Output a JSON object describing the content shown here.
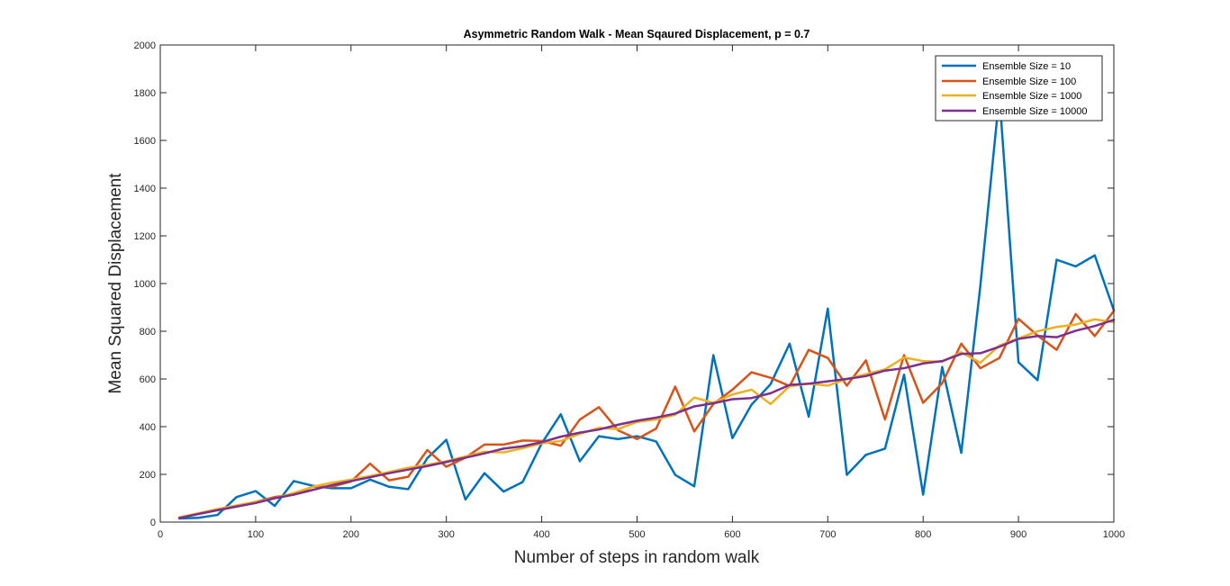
{
  "chart_data": {
    "type": "line",
    "title": "Asymmetric Random Walk - Mean Sqaured Displacement,  p = 0.7",
    "xlabel": "Number of steps in random walk",
    "ylabel": "Mean Squared Displacement",
    "xlim": [
      0,
      1000
    ],
    "ylim": [
      0,
      2000
    ],
    "xticks": [
      0,
      100,
      200,
      300,
      400,
      500,
      600,
      700,
      800,
      900,
      1000
    ],
    "yticks": [
      0,
      200,
      400,
      600,
      800,
      1000,
      1200,
      1400,
      1600,
      1800,
      2000
    ],
    "grid": false,
    "legend_position": "top-right",
    "x": [
      20,
      40,
      60,
      80,
      100,
      120,
      140,
      160,
      180,
      200,
      220,
      240,
      260,
      280,
      300,
      320,
      340,
      360,
      380,
      400,
      420,
      440,
      460,
      480,
      500,
      520,
      540,
      560,
      580,
      600,
      620,
      640,
      660,
      680,
      700,
      720,
      740,
      760,
      780,
      800,
      820,
      840,
      860,
      880,
      900,
      920,
      940,
      960,
      980,
      1000
    ],
    "series": [
      {
        "name": "Ensemble Size = 10",
        "color": "#0072BD",
        "values": [
          15,
          18,
          30,
          105,
          130,
          68,
          172,
          152,
          142,
          142,
          178,
          148,
          138,
          268,
          345,
          95,
          205,
          128,
          168,
          330,
          452,
          255,
          360,
          348,
          360,
          338,
          198,
          150,
          700,
          352,
          492,
          578,
          748,
          442,
          895,
          198,
          282,
          308,
          618,
          115,
          650,
          290,
          990,
          1790,
          670,
          595,
          1100,
          1072,
          1118,
          888
        ]
      },
      {
        "name": "Ensemble Size = 100",
        "color": "#D95319",
        "values": [
          18,
          35,
          50,
          65,
          85,
          105,
          115,
          148,
          148,
          170,
          245,
          175,
          190,
          302,
          232,
          270,
          325,
          325,
          342,
          340,
          320,
          430,
          482,
          385,
          348,
          392,
          568,
          380,
          495,
          555,
          628,
          605,
          570,
          722,
          688,
          572,
          678,
          430,
          700,
          500,
          582,
          748,
          645,
          688,
          852,
          782,
          722,
          872,
          780,
          885
        ]
      },
      {
        "name": "Ensemble Size = 1000",
        "color": "#EDB120",
        "values": [
          20,
          37,
          55,
          70,
          85,
          100,
          122,
          148,
          165,
          178,
          193,
          210,
          228,
          240,
          255,
          275,
          295,
          292,
          310,
          330,
          340,
          370,
          395,
          390,
          420,
          430,
          450,
          522,
          500,
          535,
          555,
          495,
          570,
          580,
          572,
          600,
          620,
          640,
          690,
          675,
          672,
          712,
          668,
          740,
          770,
          800,
          818,
          828,
          850,
          838
        ]
      },
      {
        "name": "Ensemble Size = 10000",
        "color": "#7E2F8E",
        "values": [
          17,
          34,
          50,
          65,
          80,
          100,
          115,
          135,
          155,
          172,
          188,
          205,
          220,
          235,
          252,
          270,
          288,
          308,
          318,
          335,
          358,
          375,
          388,
          408,
          425,
          438,
          455,
          485,
          498,
          515,
          520,
          540,
          575,
          580,
          590,
          600,
          612,
          635,
          645,
          665,
          675,
          705,
          708,
          735,
          768,
          780,
          775,
          802,
          822,
          848
        ]
      }
    ]
  }
}
